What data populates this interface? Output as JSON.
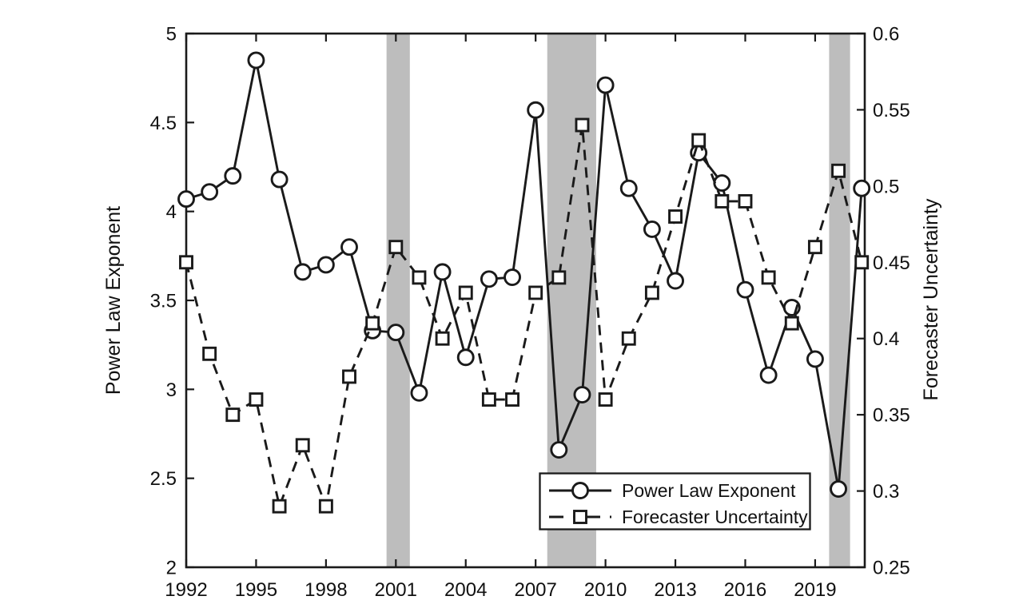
{
  "figure": {
    "background": "#ffffff",
    "line_color": "#1a1a1a",
    "band_color": "#bdbdbd",
    "text_color": "#111111"
  },
  "chart_data": {
    "type": "line",
    "x": [
      1992,
      1993,
      1994,
      1995,
      1996,
      1997,
      1998,
      1999,
      2000,
      2001,
      2002,
      2003,
      2004,
      2005,
      2006,
      2007,
      2008,
      2009,
      2010,
      2011,
      2012,
      2013,
      2014,
      2015,
      2016,
      2017,
      2018,
      2019,
      2020,
      2021
    ],
    "series": [
      {
        "name": "Power Law Exponent",
        "axis": "left",
        "line_style": "solid",
        "marker": "circle",
        "values": [
          4.07,
          4.11,
          4.2,
          4.85,
          4.18,
          3.66,
          3.7,
          3.8,
          3.33,
          3.32,
          2.98,
          3.66,
          3.18,
          3.62,
          3.63,
          4.57,
          2.66,
          2.97,
          4.71,
          4.13,
          3.9,
          3.61,
          4.33,
          4.16,
          3.56,
          3.08,
          3.46,
          3.17,
          2.44,
          4.13
        ]
      },
      {
        "name": "Forecaster Uncertainty",
        "axis": "right",
        "line_style": "dashed",
        "marker": "square",
        "values": [
          0.45,
          0.39,
          0.35,
          0.36,
          0.29,
          0.33,
          0.29,
          0.375,
          0.41,
          0.46,
          0.44,
          0.4,
          0.43,
          0.36,
          0.36,
          0.43,
          0.44,
          0.54,
          0.36,
          0.4,
          0.43,
          0.48,
          0.53,
          0.49,
          0.49,
          0.44,
          0.41,
          0.46,
          0.51,
          0.45
        ]
      }
    ],
    "x_axis": {
      "min": 1992,
      "max": 2021.13,
      "ticks": [
        1992,
        1995,
        1998,
        2001,
        2004,
        2007,
        2010,
        2013,
        2016,
        2019
      ]
    },
    "left_axis": {
      "label": "Power Law Exponent",
      "min": 2,
      "max": 5,
      "ticks": [
        2,
        2.5,
        3,
        3.5,
        4,
        4.5,
        5
      ]
    },
    "right_axis": {
      "label": "Forecaster Uncertainty",
      "min": 0.25,
      "max": 0.6,
      "ticks": [
        0.25,
        0.3,
        0.35,
        0.4,
        0.45,
        0.5,
        0.55,
        0.6
      ]
    },
    "shaded_bands": [
      {
        "from": 2000.6,
        "to": 2001.6
      },
      {
        "from": 2007.5,
        "to": 2009.6
      },
      {
        "from": 2019.6,
        "to": 2020.5
      }
    ],
    "legend": {
      "position": "inside-bottom-right",
      "entries": [
        "Power Law Exponent",
        "Forecaster Uncertainty"
      ]
    },
    "grid": "off",
    "title": ""
  }
}
